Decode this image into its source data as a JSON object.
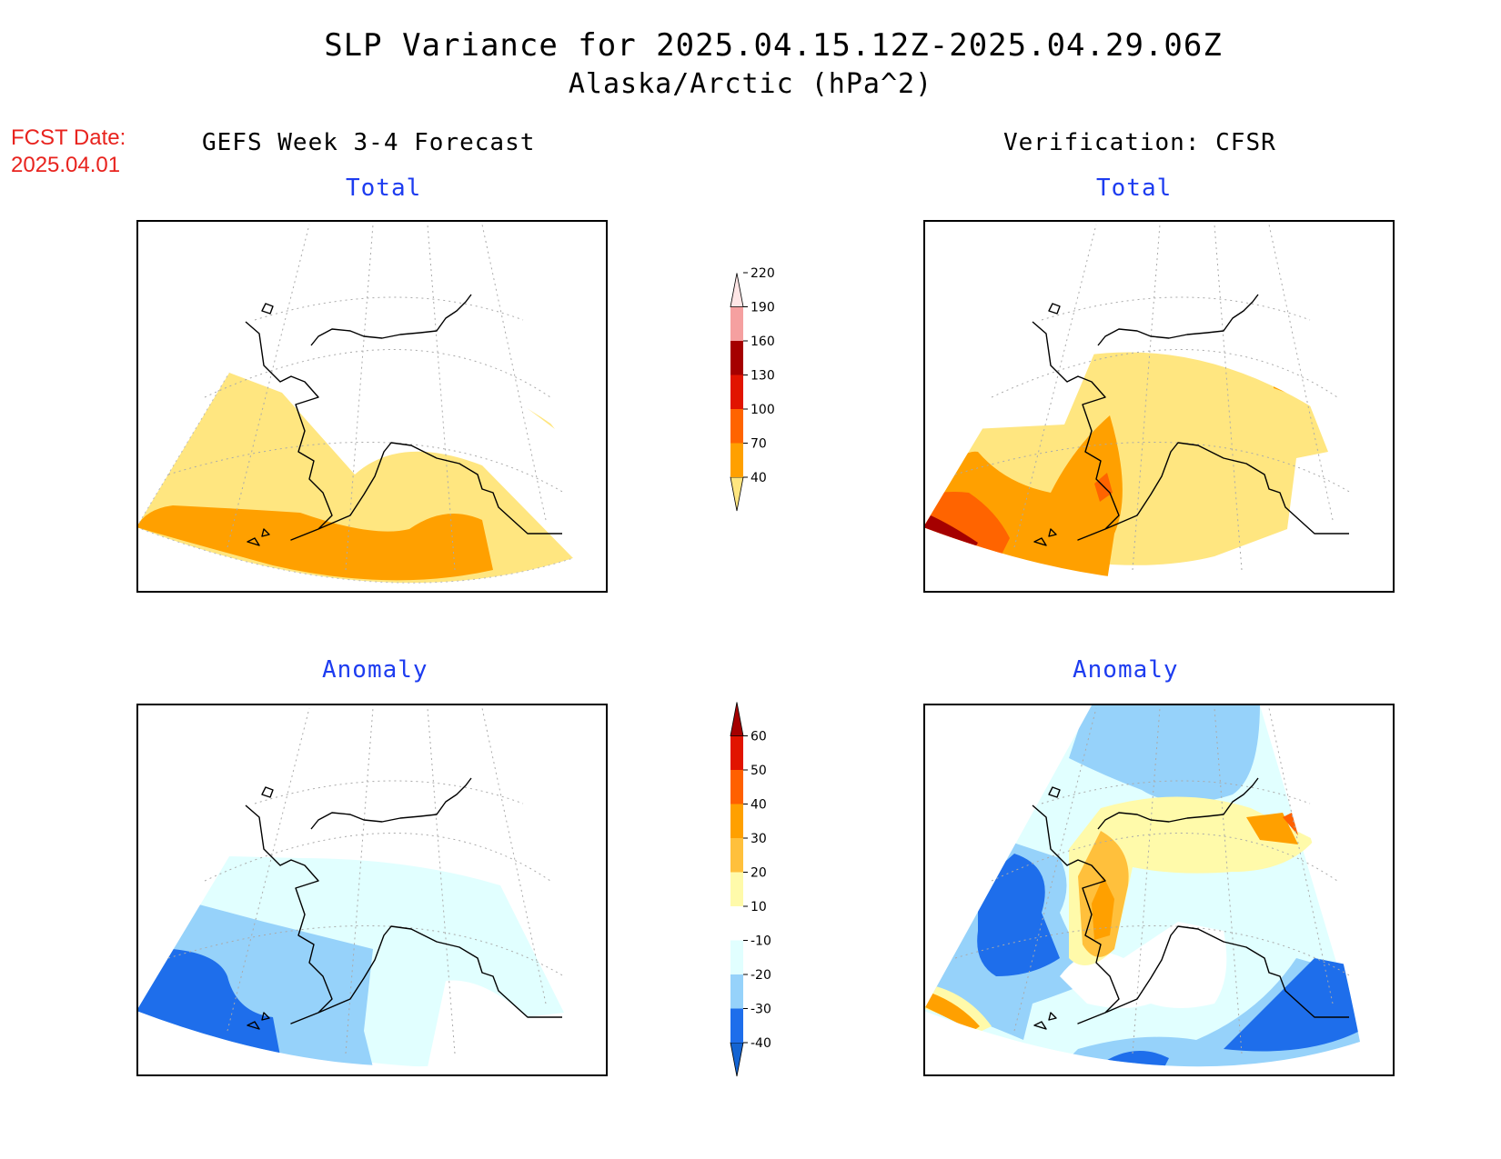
{
  "title": {
    "line1": "SLP Variance for 2025.04.15.12Z-2025.04.29.06Z",
    "line2": "Alaska/Arctic (hPa^2)"
  },
  "forecast_date": {
    "label": "FCST Date:",
    "value": "2025.04.01"
  },
  "left_column": {
    "heading": "GEFS Week 3-4 Forecast"
  },
  "right_column": {
    "heading": "Verification: CFSR"
  },
  "panels": {
    "top_left": {
      "subtitle": "Total"
    },
    "top_right": {
      "subtitle": "Total"
    },
    "bottom_left": {
      "subtitle": "Anomaly"
    },
    "bottom_right": {
      "subtitle": "Anomaly"
    }
  },
  "colorbars": {
    "total": {
      "levels": [
        "40",
        "70",
        "100",
        "130",
        "160",
        "190",
        "220"
      ],
      "colors": [
        "#ffe680",
        "#ffa000",
        "#ff6400",
        "#e11400",
        "#a50000",
        "#f5a0a0",
        "#ffe6e6"
      ]
    },
    "anomaly": {
      "levels": [
        "-40",
        "-30",
        "-20",
        "-10",
        "10",
        "20",
        "30",
        "40",
        "50",
        "60"
      ],
      "colors": [
        "#1464d2",
        "#1e6eeb",
        "#96d2fa",
        "#e1ffff",
        "#ffffff",
        "#fffaaa",
        "#ffc03c",
        "#ffa000",
        "#ff6000",
        "#e11400",
        "#a50000"
      ]
    }
  }
}
